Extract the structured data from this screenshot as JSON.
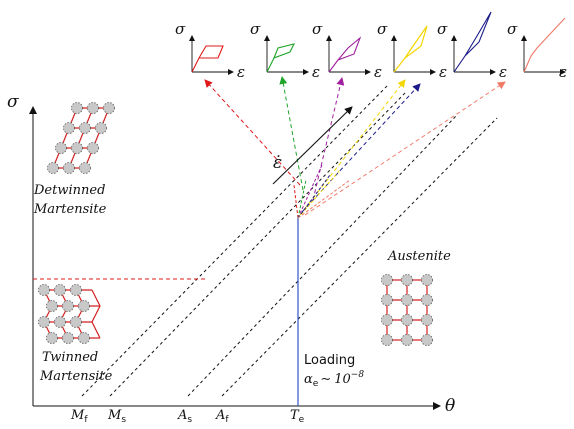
{
  "axes": {
    "y_symbol": "σ",
    "x_symbol": "θ"
  },
  "temperatures": [
    {
      "main": "M",
      "sub": "f"
    },
    {
      "main": "M",
      "sub": "s"
    },
    {
      "main": "A",
      "sub": "s"
    },
    {
      "main": "A",
      "sub": "f"
    },
    {
      "main": "T",
      "sub": "e"
    }
  ],
  "phases": {
    "detwinned": [
      "Detwinned",
      "Martensite"
    ],
    "twinned": [
      "Twinned",
      "Martensite"
    ],
    "austenite": "Austenite"
  },
  "loading": {
    "label": "Loading",
    "alpha": "α",
    "alpha_sub": "e",
    "approx": "∼",
    "value_base": "10",
    "value_exp": "−8"
  },
  "strain_rate_symbol": "ε̇",
  "mini_plot": {
    "y_symbol": "σ",
    "x_symbol": "ε"
  },
  "colors": {
    "red": "#e01818",
    "green": "#1fa52a",
    "purple": "#a020a0",
    "yellow": "#f2d600",
    "navy": "#1a1a8a",
    "salmon": "#f07a68",
    "blue_line": "#3355cc",
    "atom_fill": "#c8c8c8",
    "lattice": "#d42020"
  }
}
